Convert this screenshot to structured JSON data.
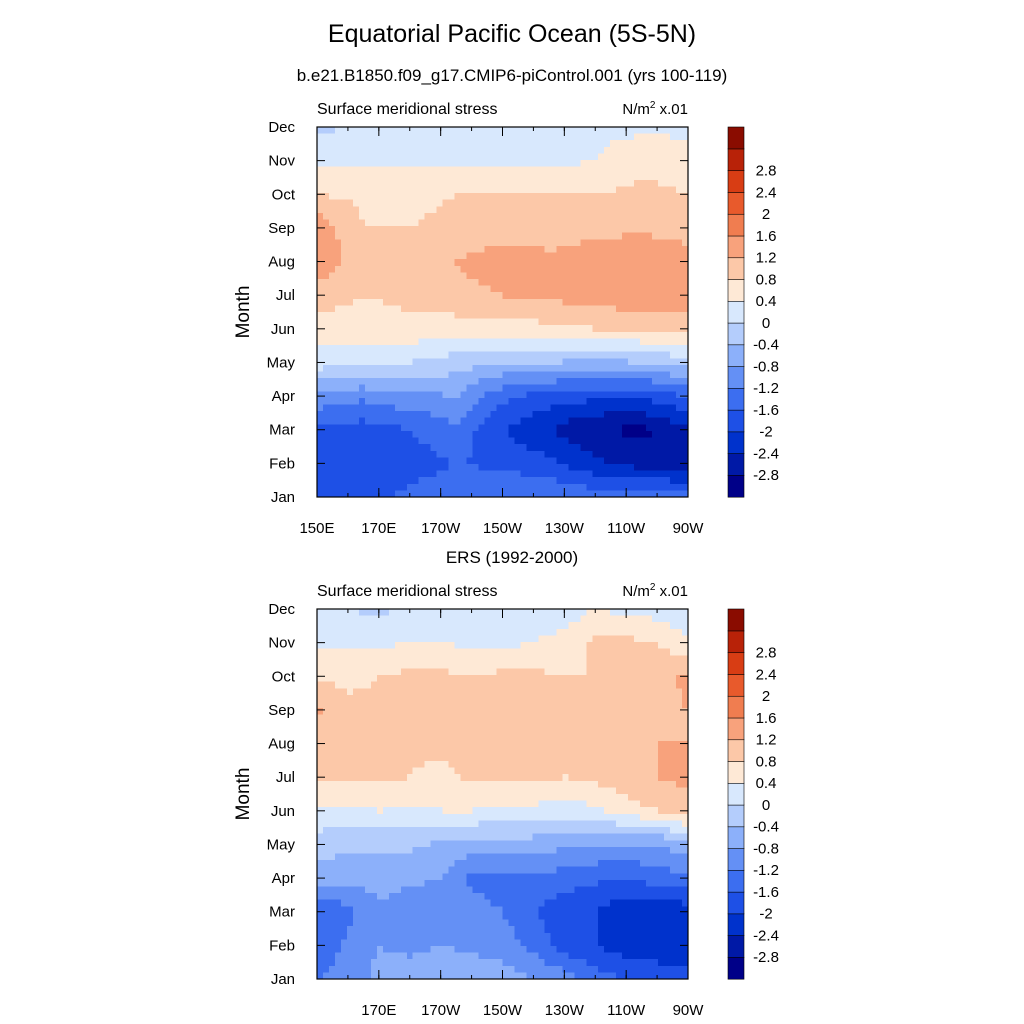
{
  "title": "Equatorial Pacific Ocean (5S-5N)",
  "subtitle": "b.e21.B1850.f09_g17.CMIP6-piControl.001 (yrs 100-119)",
  "second_title": "ERS (1992-2000)",
  "panel_label": "Surface meridional stress",
  "units_base": "N/m",
  "units_sup": "2",
  "units_scale": "x.01",
  "colorbar": {
    "levels": [
      -2.8,
      -2.4,
      -2,
      -1.6,
      -1.2,
      -0.8,
      -0.4,
      0,
      0.4,
      0.8,
      1.2,
      1.6,
      2,
      2.4,
      2.8
    ],
    "labels": [
      "-2.8",
      "-2.4",
      "-2",
      "-1.6",
      "-1.2",
      "-0.8",
      "-0.4",
      "0",
      "0.4",
      "0.8",
      "1.2",
      "1.6",
      "2",
      "2.4",
      "2.8"
    ],
    "colors": [
      "#000088",
      "#0019a6",
      "#0032cc",
      "#1e50e6",
      "#3c6ef0",
      "#6490f5",
      "#8cb0fa",
      "#b4cdfc",
      "#d8e8fd",
      "#fee9d6",
      "#fcc8a8",
      "#f8a27c",
      "#f07d50",
      "#e85a2c",
      "#d83d14",
      "#b82208",
      "#8a0c00"
    ]
  },
  "chart_data": [
    {
      "type": "heatmap",
      "title": "b.e21.B1850.f09_g17.CMIP6-piControl.001 (yrs 100-119)",
      "left_label": "Surface meridional stress",
      "units": "N/m2 x.01",
      "ylabel": "Month",
      "xlabel": "",
      "x_ticks": [
        "150E",
        "170E",
        "170W",
        "150W",
        "130W",
        "110W",
        "90W"
      ],
      "x_tick_lon": [
        150,
        170,
        190,
        210,
        230,
        250,
        270
      ],
      "y_ticks": [
        "Jan",
        "Feb",
        "Mar",
        "Apr",
        "May",
        "Jun",
        "Jul",
        "Aug",
        "Sep",
        "Oct",
        "Nov",
        "Dec"
      ],
      "xlim": [
        150,
        270
      ],
      "ylim": [
        1,
        12
      ],
      "lon": [
        150,
        165,
        180,
        195,
        210,
        225,
        240,
        255,
        270
      ],
      "month": [
        1,
        2,
        3,
        4,
        5,
        6,
        7,
        8,
        9,
        10,
        11,
        12
      ],
      "values": [
        [
          -1.7,
          -1.7,
          -1.5,
          -1.3,
          -1.2,
          -1.2,
          -1.4,
          -1.3,
          -1.5
        ],
        [
          -2.0,
          -1.9,
          -1.8,
          -1.6,
          -1.7,
          -1.9,
          -2.3,
          -2.6,
          -2.6
        ],
        [
          -1.7,
          -1.8,
          -1.6,
          -1.3,
          -2.0,
          -2.4,
          -2.8,
          -2.9,
          -2.5
        ],
        [
          -0.9,
          -1.1,
          -0.9,
          -0.8,
          -1.5,
          -1.8,
          -1.9,
          -1.9,
          -1.6
        ],
        [
          0.2,
          0.1,
          0.0,
          -0.2,
          -0.4,
          -0.4,
          -0.5,
          -0.4,
          -0.2
        ],
        [
          0.6,
          0.6,
          0.7,
          0.6,
          0.6,
          0.7,
          0.8,
          0.9,
          1.0
        ],
        [
          1.0,
          0.8,
          0.9,
          1.1,
          1.2,
          1.3,
          1.4,
          1.5,
          1.4
        ],
        [
          1.5,
          0.9,
          0.9,
          1.2,
          1.4,
          1.3,
          1.4,
          1.6,
          1.4
        ],
        [
          1.5,
          0.8,
          0.8,
          0.9,
          1.0,
          1.0,
          1.1,
          1.1,
          1.0
        ],
        [
          0.8,
          0.7,
          0.7,
          0.8,
          0.8,
          0.8,
          0.8,
          0.9,
          0.8
        ],
        [
          0.3,
          0.3,
          0.3,
          0.3,
          0.3,
          0.3,
          0.4,
          0.7,
          0.6
        ],
        [
          -0.1,
          0.1,
          0.2,
          0.2,
          0.2,
          0.2,
          0.3,
          0.3,
          0.3
        ]
      ]
    },
    {
      "type": "heatmap",
      "title": "ERS (1992-2000)",
      "left_label": "Surface meridional stress",
      "units": "N/m2 x.01",
      "ylabel": "Month",
      "xlabel": "",
      "x_ticks": [
        "170E",
        "170W",
        "150W",
        "130W",
        "110W",
        "90W"
      ],
      "x_tick_lon": [
        170,
        190,
        210,
        230,
        250,
        270
      ],
      "y_ticks": [
        "Jan",
        "Feb",
        "Mar",
        "Apr",
        "May",
        "Jun",
        "Jul",
        "Aug",
        "Sep",
        "Oct",
        "Nov",
        "Dec"
      ],
      "xlim": [
        150,
        270
      ],
      "ylim": [
        1,
        12
      ],
      "lon": [
        150,
        160,
        170,
        180,
        190,
        200,
        210,
        220,
        230,
        240,
        250,
        260,
        270
      ],
      "month": [
        1,
        2,
        3,
        4,
        5,
        6,
        7,
        8,
        9,
        10,
        11,
        12
      ],
      "values": [
        [
          -1.2,
          -1.0,
          -0.7,
          -0.6,
          -0.5,
          -0.5,
          -0.6,
          -0.8,
          -1.0,
          -1.4,
          -1.6,
          -1.8,
          -1.8
        ],
        [
          -1.5,
          -1.1,
          -0.8,
          -0.9,
          -0.8,
          -0.9,
          -1.0,
          -1.3,
          -1.8,
          -2.0,
          -2.2,
          -2.2,
          -2.3
        ],
        [
          -1.6,
          -1.3,
          -0.9,
          -1.1,
          -1.1,
          -1.0,
          -1.2,
          -1.6,
          -1.9,
          -2.0,
          -2.3,
          -2.4,
          -2.2
        ],
        [
          -0.6,
          -0.7,
          -0.6,
          -0.7,
          -0.8,
          -1.3,
          -1.4,
          -1.3,
          -1.4,
          -1.5,
          -1.6,
          -1.4,
          -1.3
        ],
        [
          -0.2,
          -0.3,
          -0.3,
          -0.3,
          -0.5,
          -0.6,
          -0.6,
          -0.6,
          -0.7,
          -0.8,
          -0.8,
          -0.8,
          -0.5
        ],
        [
          0.3,
          0.3,
          0.4,
          0.3,
          0.4,
          0.4,
          0.3,
          0.3,
          0.2,
          0.3,
          0.6,
          0.8,
          1.0
        ],
        [
          0.8,
          0.9,
          0.9,
          0.8,
          0.6,
          0.9,
          0.8,
          0.9,
          0.8,
          0.9,
          1.1,
          1.2,
          1.3
        ],
        [
          0.9,
          0.9,
          0.9,
          0.9,
          1.0,
          1.0,
          0.9,
          0.9,
          0.9,
          1.0,
          1.1,
          1.2,
          1.2
        ],
        [
          1.3,
          0.9,
          0.9,
          0.8,
          1.0,
          0.9,
          1.0,
          0.9,
          1.0,
          0.9,
          1.0,
          1.1,
          1.2
        ],
        [
          0.7,
          0.7,
          0.8,
          0.9,
          0.9,
          0.8,
          0.9,
          0.9,
          0.8,
          0.8,
          1.0,
          1.0,
          1.3
        ],
        [
          0.3,
          0.3,
          0.3,
          0.4,
          0.4,
          0.3,
          0.3,
          0.4,
          0.5,
          0.9,
          0.9,
          0.8,
          0.5
        ],
        [
          0.0,
          0.0,
          -0.1,
          0.1,
          0.1,
          0.0,
          0.2,
          0.3,
          0.2,
          0.4,
          0.3,
          0.2,
          0.1
        ]
      ]
    }
  ]
}
